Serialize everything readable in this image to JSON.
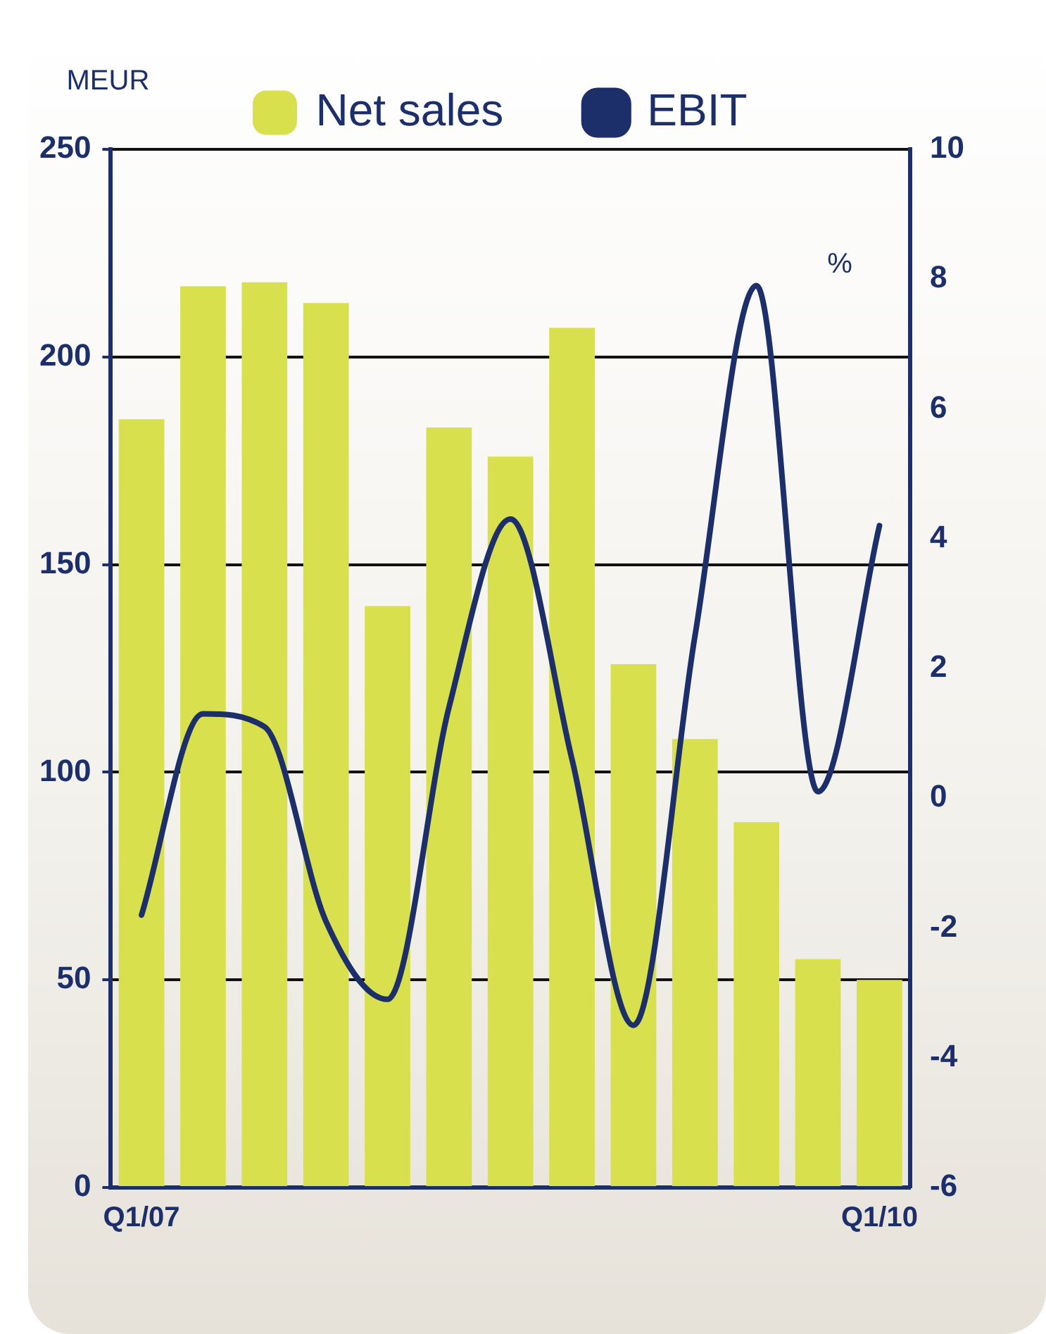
{
  "chart_data": {
    "type": "bar",
    "ylabel": "MEUR",
    "y2label": "%",
    "categories": [
      "Q1/07",
      null,
      null,
      null,
      null,
      null,
      null,
      null,
      null,
      null,
      null,
      null,
      "Q1/10"
    ],
    "series": [
      {
        "name": "Net sales",
        "color": "#d9e04e",
        "values": [
          185,
          217,
          218,
          213,
          140,
          183,
          176,
          207,
          126,
          108,
          88,
          55,
          50
        ]
      },
      {
        "name": "EBIT",
        "type": "line",
        "axis": "y2",
        "color": "#1c2f6b",
        "values": [
          -1.8,
          1.3,
          1.1,
          -1.9,
          -3.1,
          1.4,
          4.3,
          0.6,
          -3.5,
          2.5,
          7.9,
          0.1,
          4.2
        ]
      }
    ],
    "ylim": [
      0,
      250
    ],
    "yticks": [
      0,
      50,
      100,
      150,
      200,
      250
    ],
    "y2lim": [
      -6,
      10
    ],
    "y2ticks": [
      -6,
      -4,
      -2,
      0,
      2,
      4,
      6,
      8,
      10
    ],
    "grid": "y",
    "legend": "top",
    "marker": "none",
    "line_style": "solid"
  }
}
